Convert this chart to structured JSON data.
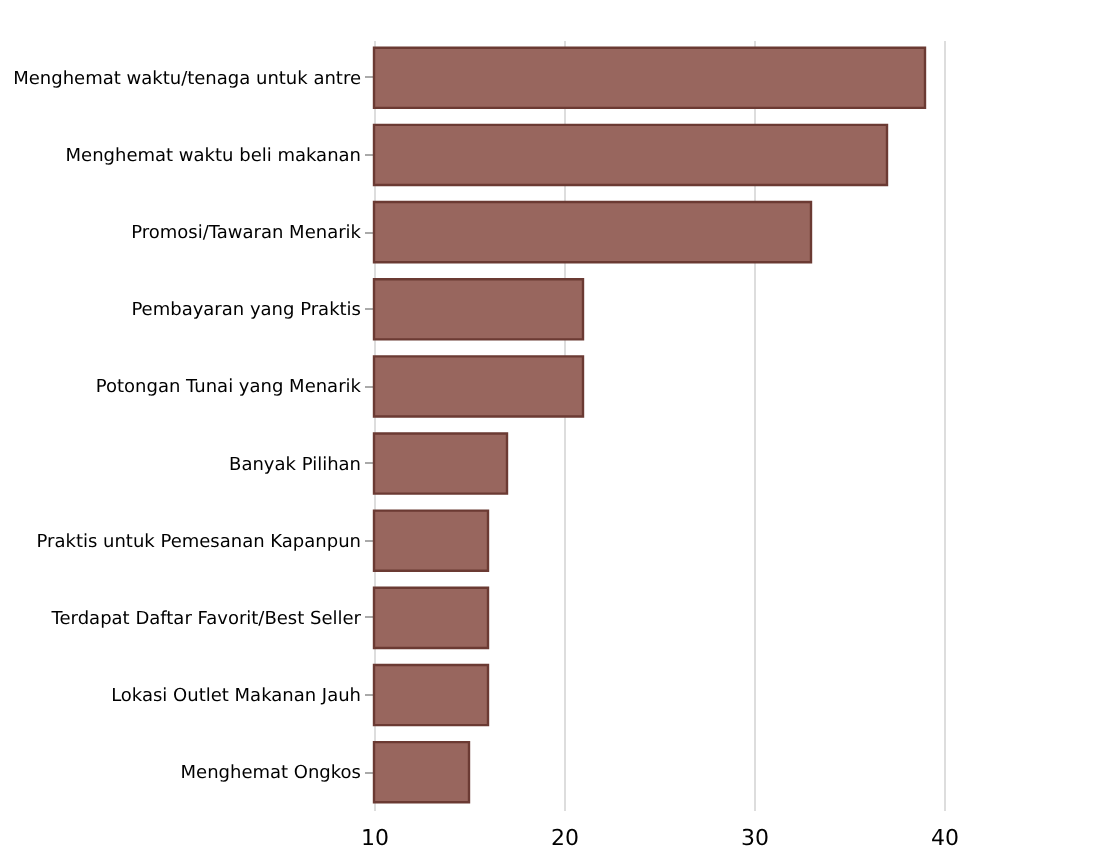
{
  "chart_data": {
    "type": "bar",
    "orientation": "horizontal",
    "categories": [
      "Menghemat waktu/tenaga untuk antre",
      "Menghemat waktu beli makanan",
      "Promosi/Tawaran Menarik",
      "Pembayaran yang Praktis",
      "Potongan Tunai yang Menarik",
      "Banyak Pilihan",
      "Praktis untuk Pemesanan Kapanpun",
      "Terdapat Daftar Favorit/Best Seller",
      "Lokasi Outlet Makanan Jauh",
      "Menghemat Ongkos"
    ],
    "values": [
      39,
      37,
      33,
      21,
      21,
      17,
      16,
      16,
      16,
      15
    ],
    "color": "#98665e",
    "xlim": [
      10,
      40
    ],
    "xticks": [
      10,
      20,
      30,
      40
    ],
    "grid": "x"
  }
}
